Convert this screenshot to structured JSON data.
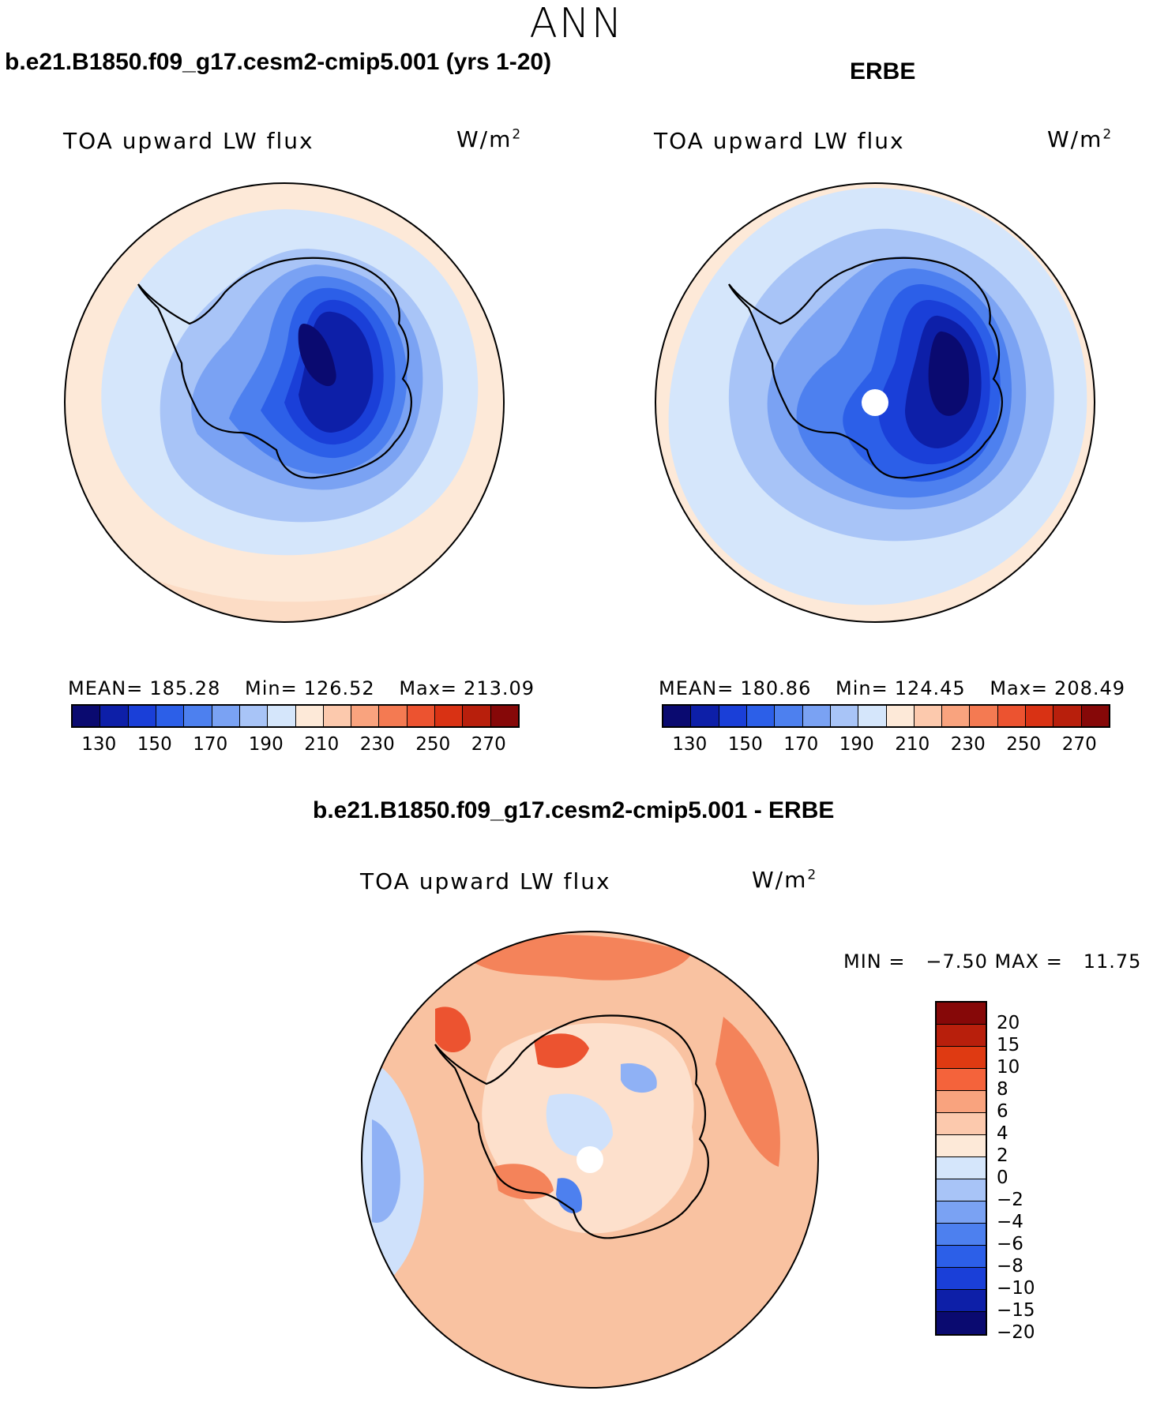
{
  "figure": {
    "title": "ANN"
  },
  "panels": {
    "model": {
      "case_title": "b.e21.B1850.f09_g17.cesm2-cmip5.001 (yrs 1-20)",
      "variable": "TOA upward LW flux",
      "units_base": "W/m",
      "units_exp": "2",
      "mean_label": "MEAN=",
      "mean_value": "185.28",
      "min_label": "Min=",
      "min_value": "126.52",
      "max_label": "Max=",
      "max_value": "213.09"
    },
    "obs": {
      "case_title": "ERBE",
      "variable": "TOA upward LW flux",
      "units_base": "W/m",
      "units_exp": "2",
      "mean_label": "MEAN=",
      "mean_value": "180.86",
      "min_label": "Min=",
      "min_value": "124.45",
      "max_label": "Max=",
      "max_value": "208.49"
    },
    "diff": {
      "case_title": "b.e21.B1850.f09_g17.cesm2-cmip5.001 - ERBE",
      "variable": "TOA upward LW flux",
      "units_base": "W/m",
      "units_exp": "2",
      "minmax_text": "MIN =   −7.50 MAX =   11.75"
    }
  },
  "colorbars": {
    "abs_colors": [
      "#0a0a70",
      "#0d1fa8",
      "#1a3fd8",
      "#2c5fe8",
      "#4d80ef",
      "#7aa2f3",
      "#a8c4f7",
      "#d5e6fb",
      "#fde9d8",
      "#fcc9ad",
      "#f9a37e",
      "#f47a52",
      "#ec5330",
      "#d93214",
      "#b81f0c",
      "#860808"
    ],
    "abs_ticks": [
      "130",
      "150",
      "170",
      "190",
      "210",
      "230",
      "250",
      "270"
    ],
    "diff_colors": [
      "#860808",
      "#b81f0c",
      "#df3a12",
      "#f4633b",
      "#f9a37e",
      "#fcc9ad",
      "#fde9d8",
      "#d5e6fb",
      "#a8c4f7",
      "#7aa2f3",
      "#4d80ef",
      "#2c5fe8",
      "#1a3fd8",
      "#0d1fa8",
      "#0a0a70"
    ],
    "diff_ticks": [
      "20",
      "15",
      "10",
      "8",
      "6",
      "4",
      "2",
      "0",
      "−2",
      "−4",
      "−6",
      "−8",
      "−10",
      "−15",
      "−20"
    ]
  },
  "map_colors": {
    "ocean_far": "#fde9d8",
    "ring_warm": "#fcdcc5",
    "ocean_mid": "#d5e6fb",
    "ocean_near": "#a8c4f7",
    "coast_band": "#7aa2f3",
    "ice1": "#4d80ef",
    "ice2": "#2c5fe8",
    "ice3": "#1a3fd8",
    "ice4": "#0d1fa8",
    "ice5": "#0a0a70",
    "diff_base": "#f9c2a1",
    "diff_warm": "#f4835a",
    "diff_hot": "#ec5330",
    "diff_light": "#fde0cc",
    "diff_cool": "#cfe1fb",
    "diff_cool2": "#8fb1f5",
    "diff_cool3": "#4d80ef",
    "pole_hole": "#ffffff"
  }
}
